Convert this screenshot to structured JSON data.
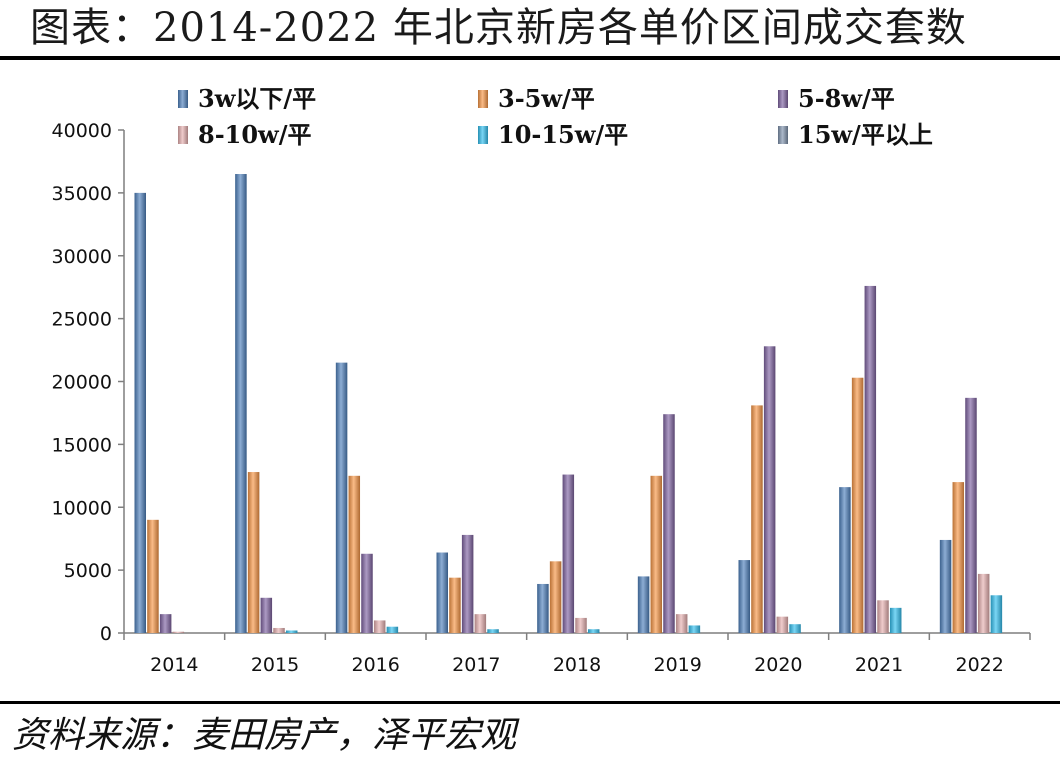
{
  "title": "图表：2014-2022 年北京新房各单价区间成交套数",
  "source": "资料来源：麦田房产，泽平宏观",
  "chart_data": {
    "type": "bar",
    "title": "图表：2014-2022 年北京新房各单价区间成交套数",
    "xlabel": "",
    "ylabel": "",
    "categories": [
      "2014",
      "2015",
      "2016",
      "2017",
      "2018",
      "2019",
      "2020",
      "2021",
      "2022"
    ],
    "ylim": [
      0,
      40000
    ],
    "yticks": [
      0,
      5000,
      10000,
      15000,
      20000,
      25000,
      30000,
      35000,
      40000
    ],
    "grid": false,
    "legend_position": "top",
    "series": [
      {
        "name": "3w以下/平",
        "color": "#4f81bd",
        "values": [
          35000,
          36500,
          21500,
          6400,
          3900,
          4500,
          5800,
          11600,
          7400
        ]
      },
      {
        "name": "3-5w/平",
        "color": "#f79646",
        "values": [
          9000,
          12800,
          12500,
          4400,
          5700,
          12500,
          18100,
          20300,
          12000
        ]
      },
      {
        "name": "5-8w/平",
        "color": "#8064a2",
        "values": [
          1500,
          2800,
          6300,
          7800,
          12600,
          17400,
          22800,
          27600,
          18700
        ]
      },
      {
        "name": "8-10w/平",
        "color": "#e6b0b0",
        "values": [
          100,
          400,
          1000,
          1500,
          1200,
          1500,
          1300,
          2600,
          4700
        ]
      },
      {
        "name": "10-15w/平",
        "color": "#33c0f0",
        "values": [
          0,
          200,
          500,
          300,
          300,
          600,
          700,
          2000,
          3000
        ]
      },
      {
        "name": "15w/平以上",
        "color": "#7f93ad",
        "values": [
          0,
          0,
          0,
          0,
          0,
          0,
          0,
          0,
          0
        ]
      }
    ]
  }
}
